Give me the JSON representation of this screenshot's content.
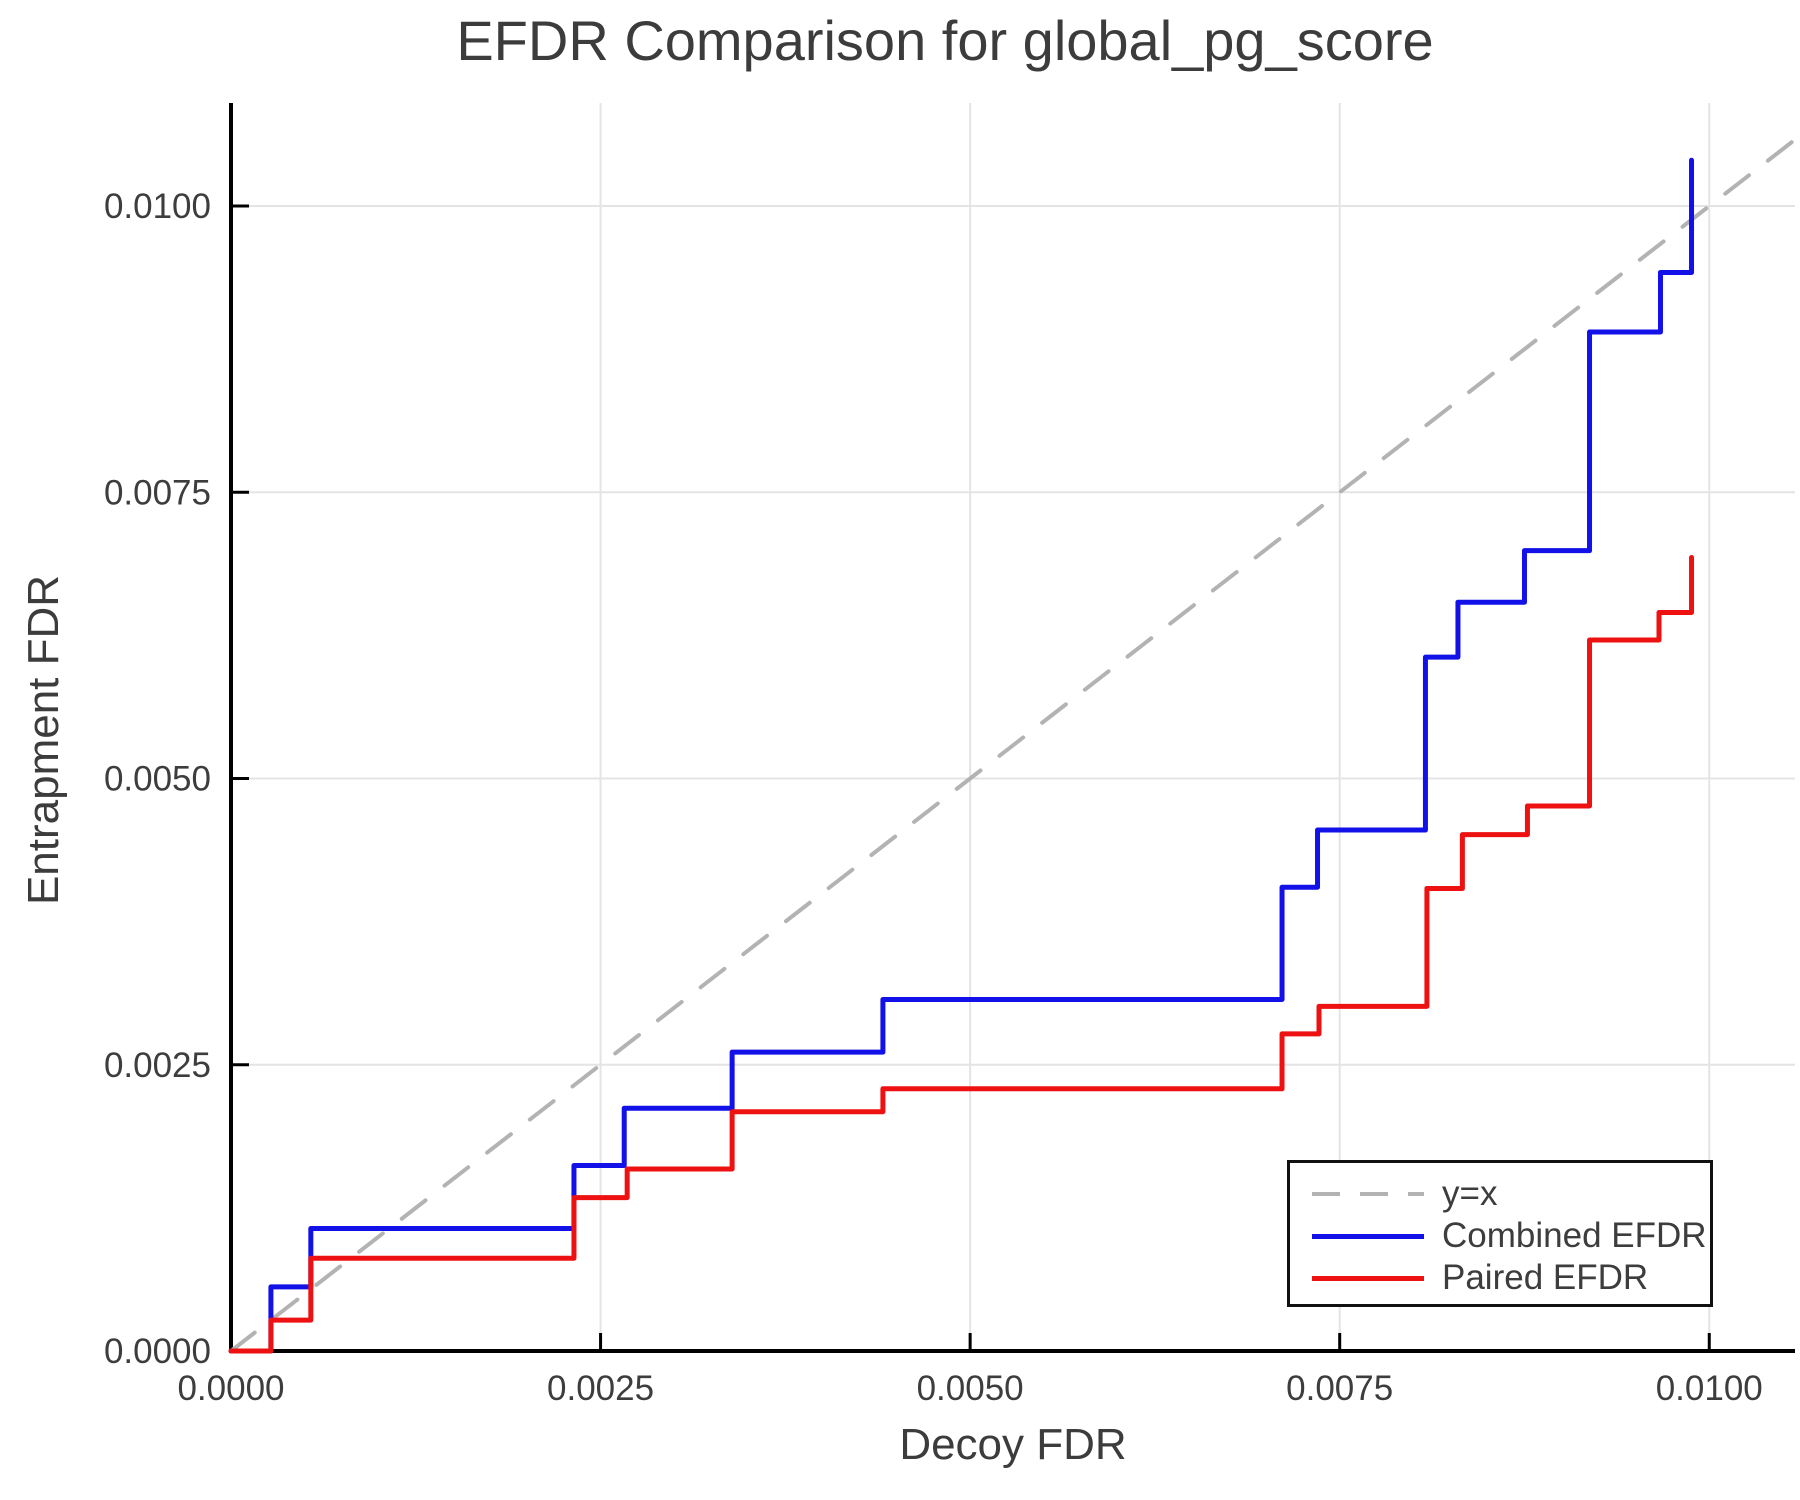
{
  "figure": {
    "background": "#ffffff"
  },
  "colors": {
    "grid": "#e4e4e4",
    "axis": "#000000",
    "text": "#3d3d3d",
    "identity": "#b3b3b3",
    "combined": "#1111e8",
    "paired": "#ee1111"
  },
  "chart_data": {
    "type": "line",
    "title": "EFDR Comparison for global_pg_score",
    "xlabel": "Decoy FDR",
    "ylabel": "Entrapment FDR",
    "xlim": [
      0,
      0.01058
    ],
    "ylim": [
      0,
      0.0109
    ],
    "grid": true,
    "legend_position": "bottom-right",
    "x_ticks": [
      0,
      0.0025,
      0.005,
      0.0075,
      0.01
    ],
    "x_tick_labels": [
      "0.0000",
      "0.0025",
      "0.0050",
      "0.0075",
      "0.0100"
    ],
    "y_ticks": [
      0,
      0.0025,
      0.005,
      0.0075,
      0.01
    ],
    "y_tick_labels": [
      "0.0000",
      "0.0025",
      "0.0050",
      "0.0075",
      "0.0100"
    ],
    "series": [
      {
        "name": "y=x",
        "style": "dashed",
        "color": "#b3b3b3",
        "points": [
          [
            0,
            0
          ],
          [
            0.01058,
            0.01058
          ]
        ]
      },
      {
        "name": "Combined EFDR",
        "style": "step",
        "color": "#1111e8",
        "points": [
          [
            0,
            0
          ],
          [
            0.00027,
            0.00056
          ],
          [
            0.00054,
            0.00107
          ],
          [
            0.00232,
            0.00162
          ],
          [
            0.00266,
            0.00212
          ],
          [
            0.00339,
            0.00261
          ],
          [
            0.00441,
            0.00307
          ],
          [
            0.00711,
            0.00405
          ],
          [
            0.00735,
            0.00455
          ],
          [
            0.00808,
            0.00606
          ],
          [
            0.0083,
            0.00654
          ],
          [
            0.00875,
            0.00699
          ],
          [
            0.00919,
            0.0089
          ],
          [
            0.00967,
            0.00942
          ],
          [
            0.00988,
            0.0104
          ]
        ]
      },
      {
        "name": "Paired EFDR",
        "style": "step",
        "color": "#ee1111",
        "points": [
          [
            0,
            0
          ],
          [
            0.00027,
            0.00027
          ],
          [
            0.00054,
            0.00081
          ],
          [
            0.00232,
            0.00134
          ],
          [
            0.00268,
            0.00159
          ],
          [
            0.00339,
            0.00209
          ],
          [
            0.00441,
            0.00229
          ],
          [
            0.00711,
            0.00277
          ],
          [
            0.00736,
            0.00301
          ],
          [
            0.00809,
            0.00404
          ],
          [
            0.00833,
            0.00451
          ],
          [
            0.00877,
            0.00476
          ],
          [
            0.00919,
            0.00621
          ],
          [
            0.00966,
            0.00645
          ],
          [
            0.00988,
            0.00693
          ]
        ]
      }
    ]
  }
}
